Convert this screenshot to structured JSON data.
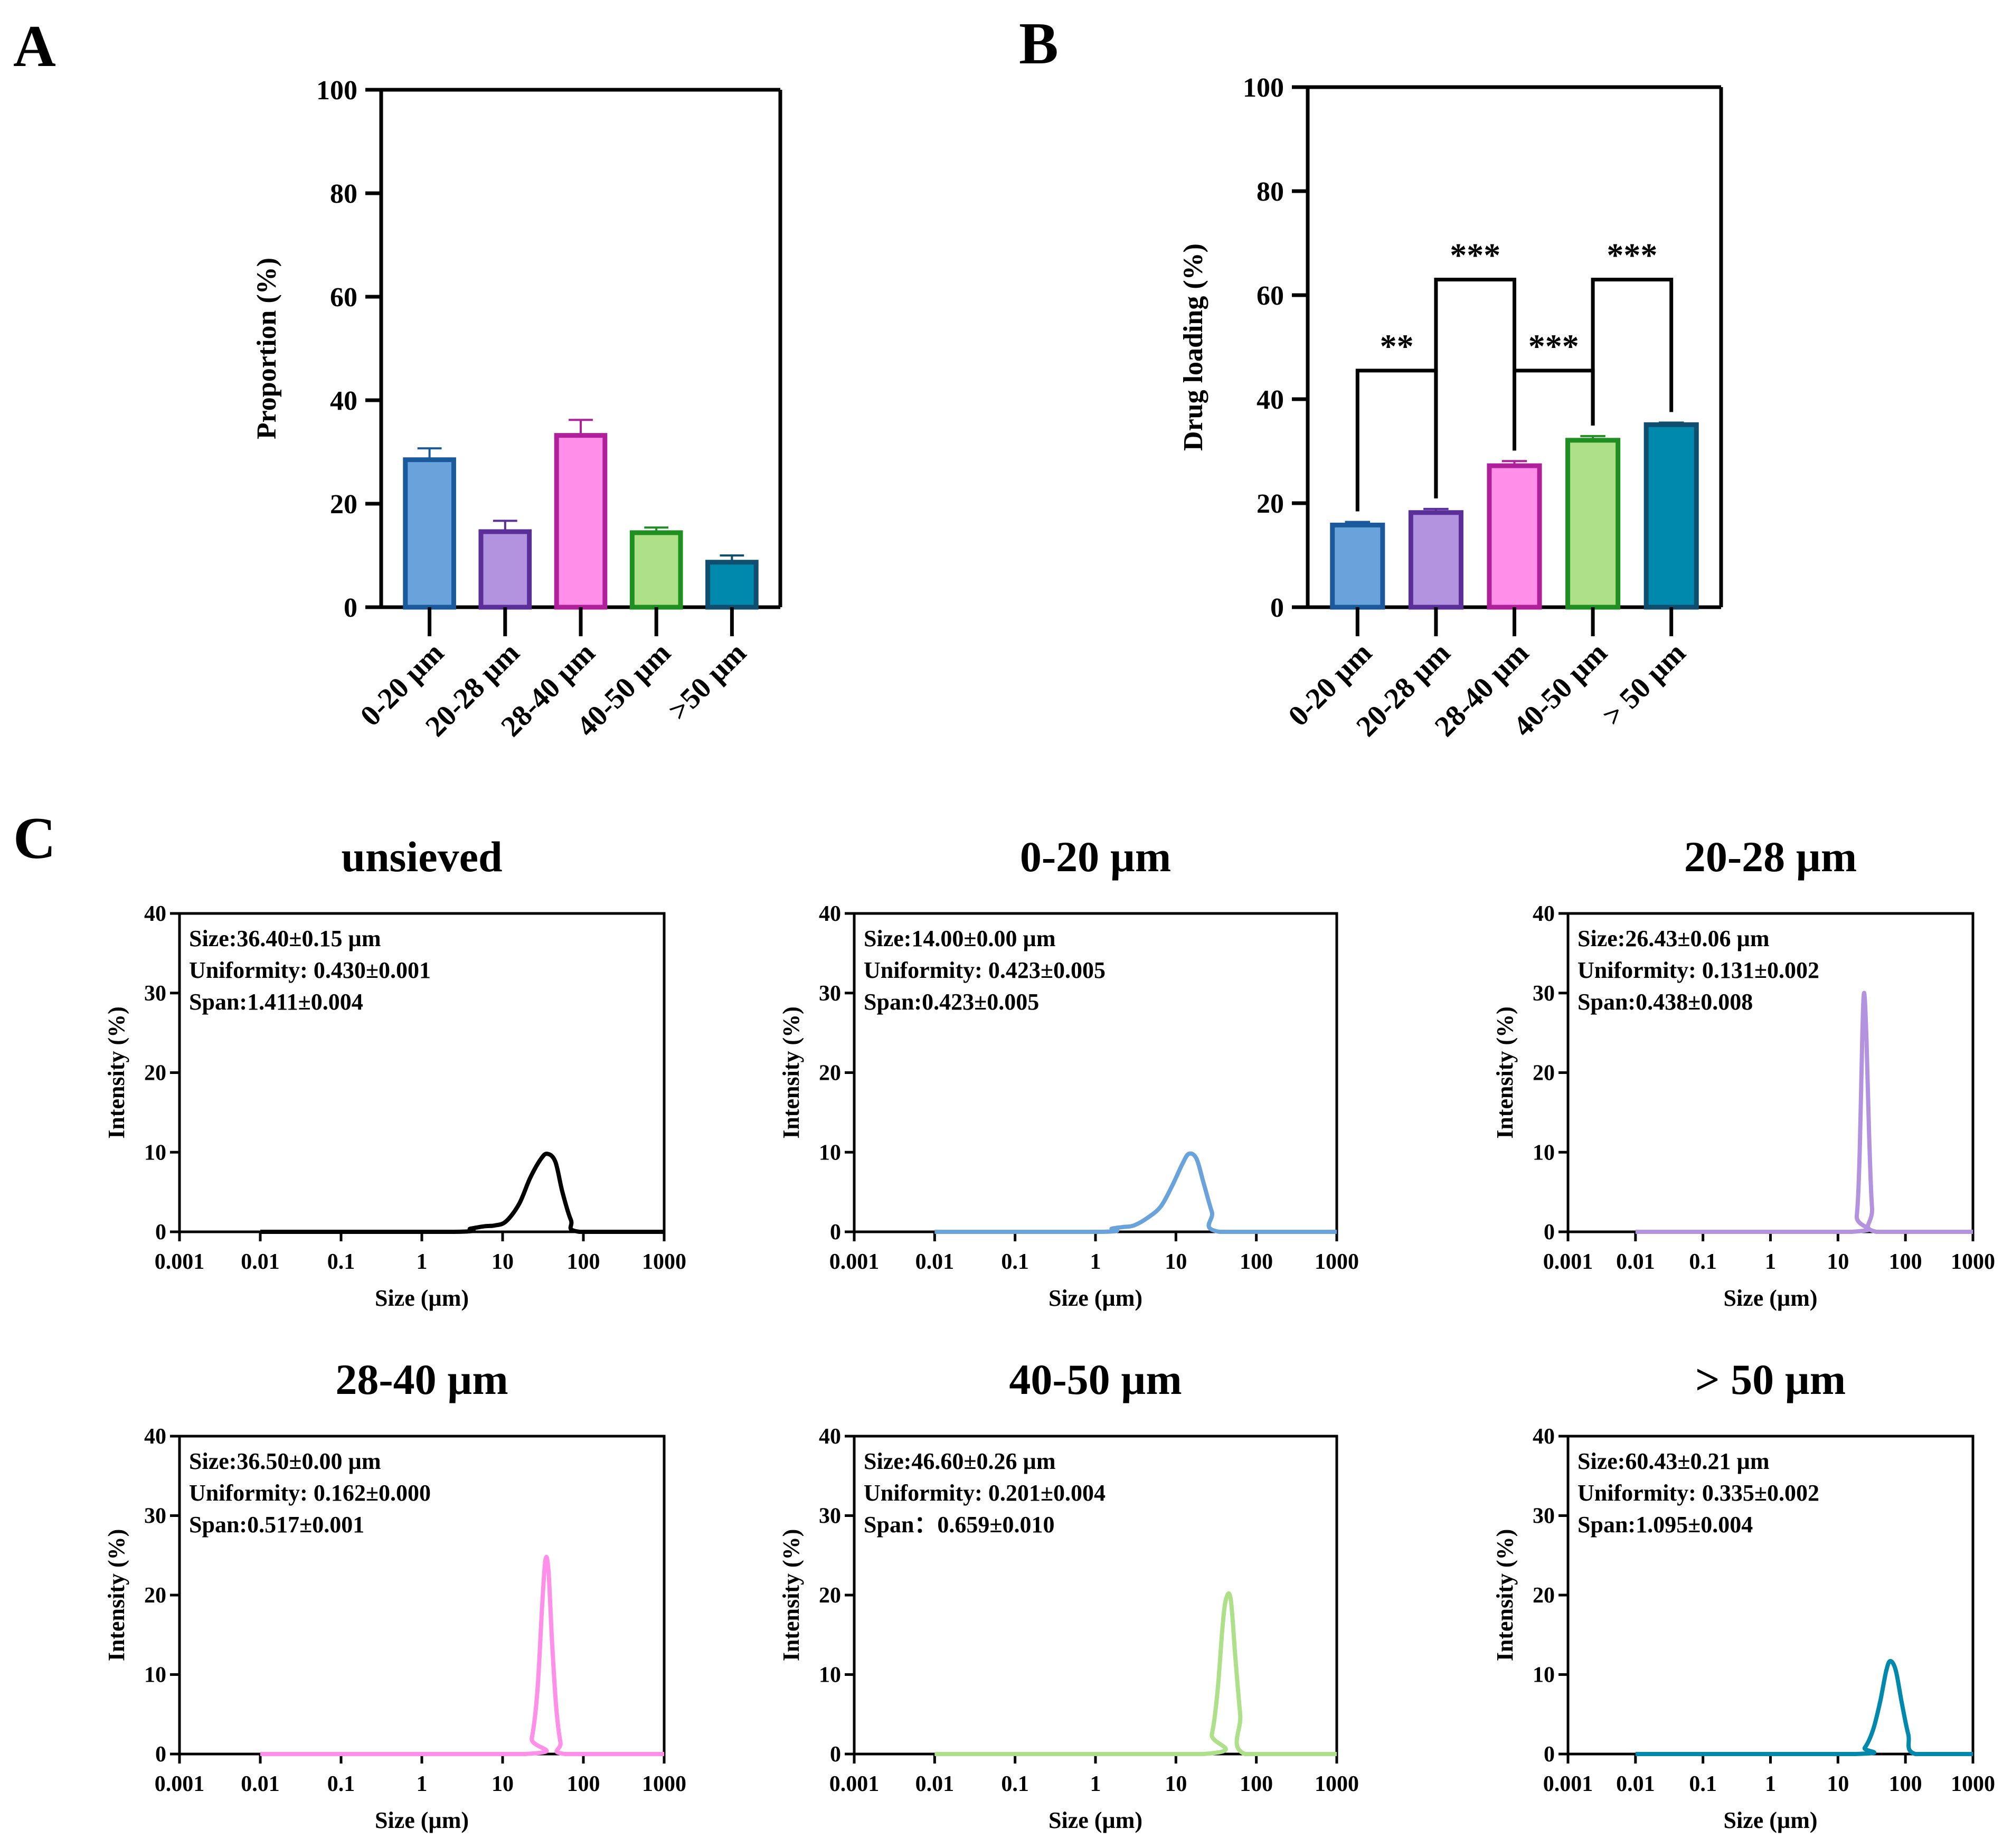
{
  "colors": {
    "blue": "#6aa3dc",
    "blue_edge": "#1a5a9c",
    "purple": "#b393df",
    "purple_edge": "#5a2f9a",
    "pink": "#ff8fe8",
    "pink_edge": "#b0209a",
    "green": "#aee08a",
    "green_edge": "#1f8f22",
    "teal": "#0089ad",
    "teal_edge": "#0f4e6e",
    "black": "#000000"
  },
  "chart_data": [
    {
      "id": "A",
      "panel_label": "A",
      "type": "bar",
      "title": "",
      "xlabel": "",
      "ylabel": "Proportion (%)",
      "ylim": [
        0,
        100
      ],
      "yticks": [
        0,
        20,
        40,
        60,
        80,
        100
      ],
      "categories": [
        "0-20 µm",
        "20-28 µm",
        "28-40 µm",
        "40-50 µm",
        ">50 µm"
      ],
      "values": [
        28.5,
        14.6,
        33.2,
        14.4,
        8.7
      ],
      "errors": [
        2.2,
        2.1,
        3.0,
        1.0,
        1.3
      ],
      "colors": [
        "blue",
        "purple",
        "pink",
        "green",
        "teal"
      ]
    },
    {
      "id": "B",
      "panel_label": "B",
      "type": "bar",
      "title": "",
      "xlabel": "",
      "ylabel": "Drug loading (%)",
      "ylim": [
        0,
        100
      ],
      "yticks": [
        0,
        20,
        40,
        60,
        80,
        100
      ],
      "categories": [
        "0-20 µm",
        "20-28 µm",
        "28-40 µm",
        "40-50 µm",
        "> 50 µm"
      ],
      "values": [
        15.8,
        18.2,
        27.2,
        32.1,
        35.1
      ],
      "errors": [
        0.6,
        0.7,
        0.9,
        0.8,
        0.4
      ],
      "colors": [
        "blue",
        "purple",
        "pink",
        "green",
        "teal"
      ],
      "significance": [
        {
          "from": 0,
          "to": 1,
          "label": "**",
          "level": 45.5
        },
        {
          "from": 1,
          "to": 2,
          "label": "***",
          "level": 63.0
        },
        {
          "from": 2,
          "to": 3,
          "label": "***",
          "level": 45.5
        },
        {
          "from": 3,
          "to": 4,
          "label": "***",
          "level": 63.0
        }
      ]
    },
    {
      "id": "C1",
      "type": "line",
      "title": "unsieved",
      "color": "black",
      "xlabel": "Size (µm)",
      "ylabel": "Intensity (%)",
      "xscale": "log",
      "xlim": [
        0.001,
        1000
      ],
      "ylim": [
        0,
        40
      ],
      "xticks": [
        "0.001",
        "0.01",
        "0.1",
        "1",
        "10",
        "100",
        "1000"
      ],
      "yticks": [
        0,
        10,
        20,
        30,
        40
      ],
      "annotation": [
        "Size:36.40±0.15 µm",
        "Uniformity: 0.430±0.001",
        "Span:1.411±0.004"
      ],
      "x": [
        0.01,
        2.5,
        4,
        6,
        8,
        11,
        16,
        22,
        30,
        36,
        45,
        55,
        70,
        90,
        1000
      ],
      "y": [
        0,
        0,
        0.4,
        0.7,
        0.8,
        1.3,
        3.5,
        6.8,
        9.2,
        9.8,
        8.8,
        5.0,
        1.5,
        0,
        0
      ]
    },
    {
      "id": "C2",
      "type": "line",
      "title": "0-20 µm",
      "color": "blue",
      "xlabel": "Size (µm)",
      "ylabel": "Intensity (%)",
      "xscale": "log",
      "xlim": [
        0.001,
        1000
      ],
      "ylim": [
        0,
        40
      ],
      "xticks": [
        "0.001",
        "0.01",
        "0.1",
        "1",
        "10",
        "100",
        "1000"
      ],
      "yticks": [
        0,
        10,
        20,
        30,
        40
      ],
      "annotation": [
        "Size:14.00±0.00 µm",
        "Uniformity: 0.423±0.005",
        "Span:0.423±0.005"
      ],
      "x": [
        0.01,
        1.2,
        1.6,
        2.2,
        3,
        4.5,
        6.5,
        9,
        12,
        14.5,
        18,
        22,
        28,
        35,
        1000
      ],
      "y": [
        0,
        0,
        0.4,
        0.6,
        0.8,
        1.8,
        3.2,
        5.8,
        8.5,
        9.8,
        9.2,
        6.2,
        2.5,
        0,
        0
      ]
    },
    {
      "id": "C3",
      "type": "line",
      "title": "20-28 µm",
      "color": "purple",
      "xlabel": "Size (µm)",
      "ylabel": "Intensity (%)",
      "xscale": "log",
      "xlim": [
        0.001,
        1000
      ],
      "ylim": [
        0,
        40
      ],
      "xticks": [
        "0.001",
        "0.01",
        "0.1",
        "1",
        "10",
        "100",
        "1000"
      ],
      "yticks": [
        0,
        10,
        20,
        30,
        40
      ],
      "annotation": [
        "Size:26.43±0.06 µm",
        "Uniformity: 0.131±0.002",
        "Span:0.438±0.008"
      ],
      "x": [
        0.01,
        16,
        19,
        21,
        23,
        24.5,
        26.5,
        29,
        32,
        37,
        1000
      ],
      "y": [
        0,
        0,
        2,
        10,
        25,
        30,
        24,
        12,
        3,
        0,
        0
      ]
    },
    {
      "id": "C4",
      "type": "line",
      "title": "28-40 µm",
      "color": "pink",
      "xlabel": "Size (µm)",
      "ylabel": "Intensity (%)",
      "xscale": "log",
      "xlim": [
        0.001,
        1000
      ],
      "ylim": [
        0,
        40
      ],
      "xticks": [
        "0.001",
        "0.01",
        "0.1",
        "1",
        "10",
        "100",
        "1000"
      ],
      "yticks": [
        0,
        10,
        20,
        30,
        40
      ],
      "annotation": [
        "Size:36.50±0.00 µm",
        "Uniformity: 0.162±0.000",
        "Span:0.517±0.001"
      ],
      "x": [
        0.01,
        19,
        23,
        27,
        31,
        34,
        37,
        41,
        46,
        52,
        60,
        1000
      ],
      "y": [
        0,
        0,
        2,
        8,
        19,
        24.5,
        23,
        14,
        6,
        1.5,
        0,
        0
      ]
    },
    {
      "id": "C5",
      "type": "line",
      "title": "40-50 µm",
      "color": "green",
      "xlabel": "Size (µm)",
      "ylabel": "Intensity (%)",
      "xscale": "log",
      "xlim": [
        0.001,
        1000
      ],
      "ylim": [
        0,
        40
      ],
      "xticks": [
        "0.001",
        "0.01",
        "0.1",
        "1",
        "10",
        "100",
        "1000"
      ],
      "yticks": [
        0,
        10,
        20,
        30,
        40
      ],
      "annotation": [
        "Size:46.60±0.26 µm",
        "Uniformity: 0.201±0.004",
        "Span：0.659±0.010"
      ],
      "x": [
        0.01,
        22,
        28,
        33,
        38,
        42,
        48,
        55,
        63,
        72,
        1000
      ],
      "y": [
        0,
        0,
        2.5,
        8,
        16,
        19.5,
        19.5,
        12,
        5,
        0,
        0
      ]
    },
    {
      "id": "C6",
      "type": "line",
      "title": "> 50 µm",
      "color": "teal",
      "xlabel": "Size (µm)",
      "ylabel": "Intensity (%)",
      "xscale": "log",
      "xlim": [
        0.001,
        1000
      ],
      "ylim": [
        0,
        40
      ],
      "xticks": [
        "0.001",
        "0.01",
        "0.1",
        "1",
        "10",
        "100",
        "1000"
      ],
      "yticks": [
        0,
        10,
        20,
        30,
        40
      ],
      "annotation": [
        "Size:60.43±0.21 µm",
        "Uniformity: 0.335±0.002",
        "Span:1.095±0.004"
      ],
      "x": [
        0.01,
        18,
        25,
        33,
        42,
        52,
        60,
        72,
        88,
        110,
        140,
        1000
      ],
      "y": [
        0,
        0,
        0.8,
        3,
        6.5,
        10.5,
        11.7,
        10.5,
        6.5,
        2.5,
        0,
        0
      ]
    }
  ],
  "panel_c_label": "C"
}
